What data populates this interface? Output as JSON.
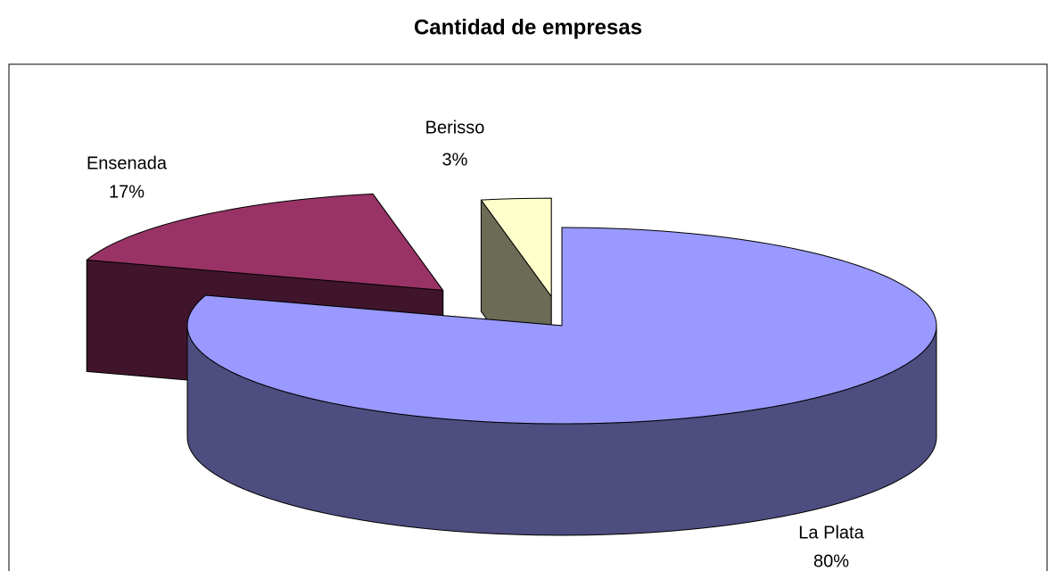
{
  "chart_data": {
    "type": "pie3d",
    "title": "Cantidad de empresas",
    "categories": [
      "La Plata",
      "Ensenada",
      "Berisso"
    ],
    "values": [
      80,
      17,
      3
    ],
    "value_labels": [
      "80%",
      "17%",
      "3%"
    ],
    "colors": [
      "#9999ff",
      "#993366",
      "#ffffcc"
    ]
  }
}
